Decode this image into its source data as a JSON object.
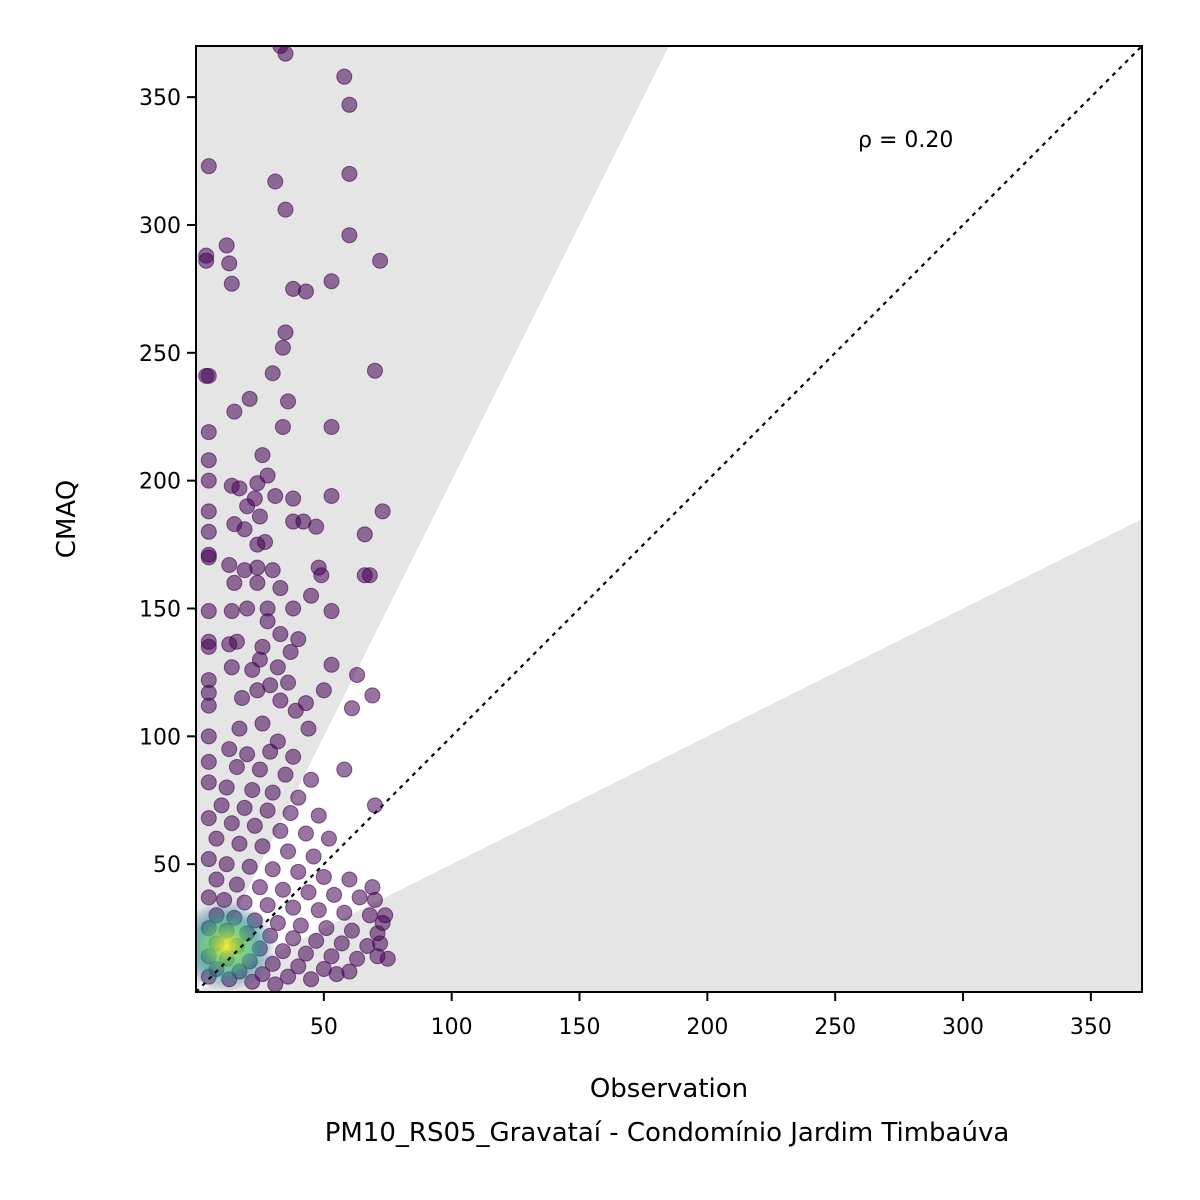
{
  "chart_data": {
    "type": "scatter",
    "xlabel": "Observation",
    "ylabel": "CMAQ",
    "subtitle": "PM10_RS05_Gravataí - Condomínio Jardim Timbaúva",
    "annotation": "ρ = 0.20",
    "xlim": [
      0,
      370
    ],
    "ylim": [
      0,
      370
    ],
    "x_ticks": [
      50,
      100,
      150,
      200,
      250,
      300,
      350
    ],
    "y_ticks": [
      50,
      100,
      150,
      200,
      250,
      300,
      350
    ],
    "reference_line": {
      "type": "1:1",
      "style": "dotted",
      "color": "#000000"
    },
    "shaded_regions": {
      "upper_slope": 2.0,
      "lower_slope": 0.5,
      "color": "#e5e5e5"
    },
    "colormap": "viridis",
    "colors": {
      "low_density": "#440154",
      "mid_density": "#21918c",
      "high_density": "#fde725",
      "shade": "#e5e5e5"
    },
    "points": [
      [
        33,
        370
      ],
      [
        35,
        367
      ],
      [
        58,
        358
      ],
      [
        60,
        347
      ],
      [
        5,
        323
      ],
      [
        31,
        317
      ],
      [
        60,
        320
      ],
      [
        35,
        306
      ],
      [
        60,
        296
      ],
      [
        12,
        292
      ],
      [
        4,
        288
      ],
      [
        4,
        286
      ],
      [
        13,
        285
      ],
      [
        72,
        286
      ],
      [
        14,
        277
      ],
      [
        38,
        275
      ],
      [
        43,
        274
      ],
      [
        53,
        278
      ],
      [
        35,
        258
      ],
      [
        34,
        252
      ],
      [
        30,
        242
      ],
      [
        70,
        243
      ],
      [
        5,
        241
      ],
      [
        4,
        241
      ],
      [
        36,
        231
      ],
      [
        21,
        232
      ],
      [
        15,
        227
      ],
      [
        5,
        219
      ],
      [
        34,
        221
      ],
      [
        53,
        221
      ],
      [
        26,
        210
      ],
      [
        5,
        208
      ],
      [
        5,
        200
      ],
      [
        14,
        198
      ],
      [
        17,
        197
      ],
      [
        24,
        199
      ],
      [
        28,
        202
      ],
      [
        23,
        193
      ],
      [
        31,
        194
      ],
      [
        38,
        193
      ],
      [
        53,
        194
      ],
      [
        5,
        188
      ],
      [
        20,
        190
      ],
      [
        73,
        188
      ],
      [
        15,
        183
      ],
      [
        25,
        186
      ],
      [
        38,
        184
      ],
      [
        42,
        184
      ],
      [
        47,
        182
      ],
      [
        5,
        180
      ],
      [
        19,
        181
      ],
      [
        66,
        179
      ],
      [
        24,
        175
      ],
      [
        27,
        176
      ],
      [
        5,
        171
      ],
      [
        5,
        170
      ],
      [
        13,
        167
      ],
      [
        19,
        165
      ],
      [
        24,
        166
      ],
      [
        30,
        165
      ],
      [
        48,
        166
      ],
      [
        49,
        163
      ],
      [
        66,
        163
      ],
      [
        68,
        163
      ],
      [
        15,
        160
      ],
      [
        24,
        160
      ],
      [
        33,
        158
      ],
      [
        45,
        155
      ],
      [
        5,
        149
      ],
      [
        14,
        149
      ],
      [
        20,
        150
      ],
      [
        28,
        150
      ],
      [
        38,
        150
      ],
      [
        53,
        149
      ],
      [
        28,
        145
      ],
      [
        33,
        140
      ],
      [
        40,
        138
      ],
      [
        5,
        137
      ],
      [
        13,
        136
      ],
      [
        5,
        135
      ],
      [
        26,
        135
      ],
      [
        16,
        137
      ],
      [
        37,
        133
      ],
      [
        25,
        130
      ],
      [
        14,
        127
      ],
      [
        22,
        126
      ],
      [
        32,
        127
      ],
      [
        53,
        128
      ],
      [
        63,
        124
      ],
      [
        5,
        122
      ],
      [
        29,
        120
      ],
      [
        36,
        121
      ],
      [
        5,
        117
      ],
      [
        24,
        118
      ],
      [
        50,
        118
      ],
      [
        69,
        116
      ],
      [
        18,
        115
      ],
      [
        33,
        114
      ],
      [
        43,
        113
      ],
      [
        61,
        111
      ],
      [
        5,
        112
      ],
      [
        39,
        110
      ],
      [
        26,
        105
      ],
      [
        17,
        103
      ],
      [
        44,
        103
      ],
      [
        5,
        100
      ],
      [
        32,
        98
      ],
      [
        13,
        95
      ],
      [
        20,
        93
      ],
      [
        29,
        94
      ],
      [
        38,
        92
      ],
      [
        5,
        90
      ],
      [
        16,
        88
      ],
      [
        25,
        87
      ],
      [
        58,
        87
      ],
      [
        35,
        85
      ],
      [
        45,
        83
      ],
      [
        5,
        82
      ],
      [
        12,
        80
      ],
      [
        22,
        79
      ],
      [
        30,
        78
      ],
      [
        40,
        76
      ],
      [
        10,
        73
      ],
      [
        19,
        72
      ],
      [
        28,
        71
      ],
      [
        37,
        70
      ],
      [
        70,
        73
      ],
      [
        48,
        69
      ],
      [
        5,
        68
      ],
      [
        14,
        66
      ],
      [
        23,
        65
      ],
      [
        33,
        63
      ],
      [
        43,
        62
      ],
      [
        52,
        60
      ],
      [
        8,
        60
      ],
      [
        17,
        58
      ],
      [
        26,
        57
      ],
      [
        36,
        55
      ],
      [
        46,
        53
      ],
      [
        5,
        52
      ],
      [
        12,
        50
      ],
      [
        21,
        49
      ],
      [
        30,
        48
      ],
      [
        40,
        47
      ],
      [
        50,
        45
      ],
      [
        60,
        44
      ],
      [
        8,
        44
      ],
      [
        16,
        42
      ],
      [
        25,
        41
      ],
      [
        34,
        40
      ],
      [
        44,
        39
      ],
      [
        54,
        38
      ],
      [
        64,
        37
      ],
      [
        69,
        41
      ],
      [
        70,
        36
      ],
      [
        5,
        37
      ],
      [
        11,
        36
      ],
      [
        19,
        35
      ],
      [
        28,
        34
      ],
      [
        38,
        33
      ],
      [
        48,
        32
      ],
      [
        58,
        31
      ],
      [
        68,
        30
      ],
      [
        74,
        30
      ],
      [
        73,
        27
      ],
      [
        8,
        30
      ],
      [
        15,
        29
      ],
      [
        23,
        28
      ],
      [
        32,
        27
      ],
      [
        41,
        26
      ],
      [
        51,
        25
      ],
      [
        61,
        24
      ],
      [
        71,
        23
      ],
      [
        5,
        25
      ],
      [
        12,
        24
      ],
      [
        20,
        23
      ],
      [
        29,
        22
      ],
      [
        38,
        21
      ],
      [
        47,
        20
      ],
      [
        57,
        19
      ],
      [
        67,
        18
      ],
      [
        72,
        19
      ],
      [
        8,
        19
      ],
      [
        16,
        18
      ],
      [
        25,
        17
      ],
      [
        34,
        16
      ],
      [
        43,
        15
      ],
      [
        53,
        14
      ],
      [
        63,
        13
      ],
      [
        75,
        13
      ],
      [
        71,
        14
      ],
      [
        5,
        14
      ],
      [
        12,
        13
      ],
      [
        21,
        12
      ],
      [
        30,
        11
      ],
      [
        40,
        10
      ],
      [
        50,
        9
      ],
      [
        60,
        8
      ],
      [
        55,
        7
      ],
      [
        8,
        9
      ],
      [
        17,
        8
      ],
      [
        26,
        7
      ],
      [
        36,
        6
      ],
      [
        45,
        5
      ],
      [
        5,
        6
      ],
      [
        13,
        5
      ],
      [
        22,
        4
      ],
      [
        31,
        3
      ]
    ]
  }
}
